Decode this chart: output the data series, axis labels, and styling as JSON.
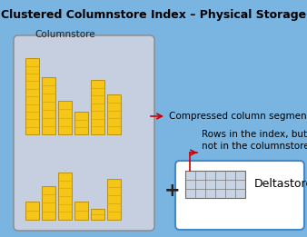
{
  "title": "Clustered Columnstore Index – Physical Storage",
  "bg_color": "#7ab4e0",
  "columnstore_label": "Columnstore",
  "columnstore_box_color": "#c5cfe0",
  "columnstore_box_edge": "#888888",
  "bar_fill": "#f5c518",
  "bar_edge": "#b89010",
  "bar_inner_line": "#c8a010",
  "group1_bars": [
    0.95,
    0.72,
    0.42,
    0.28,
    0.68,
    0.5
  ],
  "group2_bars": [
    0.28,
    0.52,
    0.72,
    0.28,
    0.16,
    0.62
  ],
  "compressed_label": "Compressed column segments",
  "delta_label": "Deltastore",
  "rows_label": "Rows in the index, but\nnot in the columnstore",
  "delta_box_edge": "#4488cc",
  "plus_sign": "+",
  "arrow_color": "#cc0000",
  "title_fontsize": 9,
  "label_fontsize": 7.5,
  "delta_fontsize": 9
}
